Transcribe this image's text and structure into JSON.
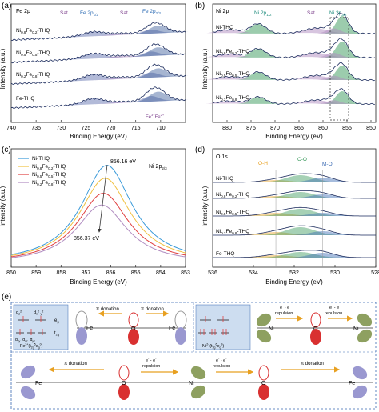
{
  "chart_data": [
    {
      "id": "a",
      "type": "line",
      "panel_label": "(a)",
      "inset_label": "Fe 2p",
      "xlabel": "Binding Energy (eV)",
      "ylabel": "Intensity (a.u.)",
      "xlim": [
        740,
        705
      ],
      "xticks": [
        740,
        735,
        730,
        725,
        720,
        715,
        710
      ],
      "xtick_labels": [
        "740",
        "735",
        "730",
        "725",
        "720",
        "715",
        "710"
      ],
      "series": [
        {
          "name": "Ni0.8Fe0.2-THQ",
          "label_main": "Ni",
          "sub1": "0.8",
          "mid": "Fe",
          "sub2": "0.2",
          "label_tail": "-THQ",
          "peak_pos": [
            723.5,
            712,
            717.8,
            710.5
          ],
          "weights": [
            0.4,
            0.35,
            0.15,
            0.6
          ]
        },
        {
          "name": "Ni0.5Fe0.5-THQ",
          "label_main": "Ni",
          "sub1": "0.5",
          "mid": "Fe",
          "sub2": "0.5",
          "label_tail": "-THQ",
          "peak_pos": [
            723.5,
            712,
            717.8,
            710.5
          ],
          "weights": [
            0.45,
            0.4,
            0.15,
            0.65
          ]
        },
        {
          "name": "Ni0.2Fe0.8-THQ",
          "label_main": "Ni",
          "sub1": "0.2",
          "mid": "Fe",
          "sub2": "0.8",
          "label_tail": "-THQ",
          "peak_pos": [
            723.5,
            712,
            717.8,
            710.5
          ],
          "weights": [
            0.5,
            0.45,
            0.15,
            0.7
          ]
        },
        {
          "name": "Fe-THQ",
          "label_main": "Fe-THQ",
          "sub1": "",
          "mid": "",
          "sub2": "",
          "label_tail": "",
          "peak_pos": [
            723.5,
            712,
            717.8,
            710.5
          ],
          "weights": [
            0.5,
            0.5,
            0.1,
            0.75
          ]
        }
      ],
      "annotations": {
        "sat": "Sat.",
        "fe2p12": "Fe 2p",
        "fe2p12_sub": "1/2",
        "fe2p32": "Fe 2p",
        "fe2p32_sub": "2/3",
        "fe3": "Fe",
        "fe3_sup": "3+",
        "fe2": "Fe",
        "fe2_sup": "2+"
      },
      "colors": {
        "sat": "#7b3f8c",
        "label": "#2a6ab3",
        "fill_main": "#5566a8",
        "fill_sat": "#a37db8",
        "fit": "#1a2a5c",
        "raw": "#888888"
      }
    },
    {
      "id": "b",
      "type": "line",
      "panel_label": "(b)",
      "inset_label": "Ni 2p",
      "xlabel": "Binding Energy (eV)",
      "ylabel": "Intensity (a.u.)",
      "xlim": [
        883,
        849
      ],
      "xticks": [
        880,
        875,
        870,
        865,
        860,
        855,
        850
      ],
      "xtick_labels": [
        "880",
        "875",
        "870",
        "865",
        "860",
        "855",
        "850"
      ],
      "series": [
        {
          "name": "Ni-THQ",
          "label_main": "Ni-THQ",
          "sub1": "",
          "mid": "",
          "sub2": "",
          "label_tail": ""
        },
        {
          "name": "Ni0.8Fe0.2-THQ",
          "label_main": "Ni",
          "sub1": "0.8",
          "mid": "Fe",
          "sub2": "0.2",
          "label_tail": "-THQ"
        },
        {
          "name": "Ni0.5Fe0.5-THQ",
          "label_main": "Ni",
          "sub1": "0.5",
          "mid": "Fe",
          "sub2": "0.5",
          "label_tail": "-THQ"
        },
        {
          "name": "Ni0.2Fe0.8-THQ",
          "label_main": "Ni",
          "sub1": "0.2",
          "mid": "Fe",
          "sub2": "0.8",
          "label_tail": "-THQ"
        }
      ],
      "annotations": {
        "sat": "Sat.",
        "ni2p12": "Ni 2p",
        "ni2p12_sub": "1/2",
        "ni2p32": "Ni 2p",
        "ni2p32_sub": "3/2"
      },
      "colors": {
        "sat": "#7b3f8c",
        "label": "#1a8a7a",
        "fill_main": "#3a9a5c",
        "fill_sat": "#b08cc0",
        "fit": "#1a2a5c"
      }
    },
    {
      "id": "c",
      "type": "line",
      "panel_label": "(c)",
      "title": "Ni 2p",
      "title_sub": "2/3",
      "xlabel": "Binding Energy (eV)",
      "ylabel": "Intensity (a.u.)",
      "xlim": [
        860,
        853
      ],
      "xticks": [
        860,
        859,
        858,
        857,
        856,
        855,
        854,
        853
      ],
      "xtick_labels": [
        "860",
        "859",
        "858",
        "857",
        "856",
        "855",
        "854",
        "853"
      ],
      "peak_labels": {
        "top": "856.16 eV",
        "bottom": "856.37 eV"
      },
      "series": [
        {
          "name": "Ni-THQ",
          "label_main": "Ni-THQ",
          "sub1": "",
          "mid": "",
          "sub2": "",
          "label_tail": "",
          "color": "#3a9ad9",
          "peak": 856.16,
          "height": 0.92
        },
        {
          "name": "Ni0.8Fe0.2-THQ",
          "label_main": "Ni",
          "sub1": "0.8",
          "mid": "Fe",
          "sub2": "0.2",
          "label_tail": "-THQ",
          "color": "#f0c040",
          "peak": 856.23,
          "height": 0.8
        },
        {
          "name": "Ni0.5Fe0.5-THQ",
          "label_main": "Ni",
          "sub1": "0.5",
          "mid": "Fe",
          "sub2": "0.5",
          "label_tail": "-THQ",
          "color": "#e04040",
          "peak": 856.3,
          "height": 0.66
        },
        {
          "name": "Ni0.2Fe0.8-THQ",
          "label_main": "Ni",
          "sub1": "0.2",
          "mid": "Fe",
          "sub2": "0.8",
          "label_tail": "-THQ",
          "color": "#b08cc0",
          "peak": 856.37,
          "height": 0.55
        }
      ]
    },
    {
      "id": "d",
      "type": "line",
      "panel_label": "(d)",
      "inset_label": "O 1s",
      "xlabel": "Binding Energy (eV)",
      "ylabel": "Intensity (a.u.)",
      "xlim": [
        536,
        528
      ],
      "xticks": [
        536,
        534,
        532,
        530,
        528
      ],
      "xtick_labels": [
        "536",
        "534",
        "532",
        "530",
        "528"
      ],
      "annotations": {
        "oh": "O-H",
        "co": "C-O",
        "mo": "M-O"
      },
      "series": [
        {
          "name": "Ni-THQ",
          "label_main": "Ni-THQ",
          "sub1": "",
          "mid": "",
          "sub2": "",
          "label_tail": ""
        },
        {
          "name": "Ni0.8Fe0.2-THQ",
          "label_main": "Ni",
          "sub1": "0.8",
          "mid": "Fe",
          "sub2": "0.2",
          "label_tail": "-THQ"
        },
        {
          "name": "Ni0.5Fe0.5-THQ",
          "label_main": "Ni",
          "sub1": "0.5",
          "mid": "Fe",
          "sub2": "0.5",
          "label_tail": "-THQ"
        },
        {
          "name": "Ni0.2Fe0.8-THQ",
          "label_main": "Ni",
          "sub1": "0.2",
          "mid": "Fe",
          "sub2": "0.8",
          "label_tail": "-THQ"
        },
        {
          "name": "Fe-THQ",
          "label_main": "Fe-THQ",
          "sub1": "",
          "mid": "",
          "sub2": "",
          "label_tail": ""
        }
      ],
      "colors": {
        "oh": "#e8a020",
        "co": "#3a9a5c",
        "mo": "#3a6ab3"
      }
    }
  ],
  "panel_e": {
    "panel_label": "(e)",
    "fe_config": {
      "dz2": "d",
      "dz2_sub": "z",
      "dz2_sup": "2",
      "dx2y2": "d",
      "dx2y2_sub": "x",
      "dx2y2_sup": "2",
      "dx2y2_sub2": "-y",
      "dx2y2_sup2": "2",
      "eg": "e",
      "eg_sub": "g",
      "t2g": "t",
      "t2g_sub": "2g",
      "dxy": "d",
      "dxy_sub": "xy",
      "dxz": "d",
      "dxz_sub": "xz",
      "dyz": "d",
      "dyz_sub": "yz",
      "ion": "Fe",
      "ion_sup": "3+",
      "ion_conf": "(t",
      "ion_conf_sub": "2g",
      "ion_conf_sup": "5",
      "ion_conf2": "e",
      "ion_conf2_sub": "g",
      "ion_conf2_sup": "0",
      "ion_conf_end": ")"
    },
    "ni_config": {
      "ion": "Ni",
      "ion_sup": "2+",
      "ion_conf": "(t",
      "ion_conf_sub": "2g",
      "ion_conf_sup": "6",
      "ion_conf2": "e",
      "ion_conf2_sub": "g",
      "ion_conf2_sup": "2",
      "ion_conf_end": ")"
    },
    "labels": {
      "pi_donation": "π donation",
      "e_repulsion_1": "e",
      "e_repulsion_1b": " - e",
      "e_repulsion_sup": "-",
      "repulsion": "repulsion",
      "fe": "Fe",
      "ni": "Ni",
      "o": "O"
    },
    "colors": {
      "fe_lobe": "#9a98d0",
      "ni_lobe": "#8ea060",
      "o_lobe": "#d93030",
      "arrow": "#e8a020",
      "box_bg": "#dde8f4",
      "box_border": "#3a6ab3"
    }
  }
}
